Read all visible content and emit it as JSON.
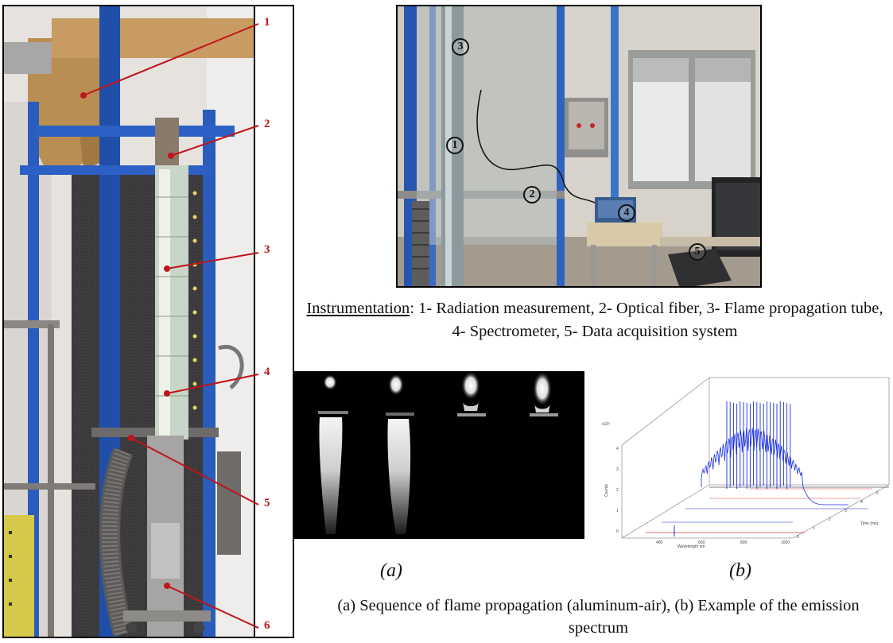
{
  "left_photo": {
    "callouts": [
      "1",
      "2",
      "3",
      "4",
      "5",
      "6"
    ]
  },
  "lab_photo": {
    "markers": [
      "3",
      "1",
      "2",
      "4",
      "5"
    ]
  },
  "instrumentation_caption": {
    "lead": "Instrumentation",
    "text": ": 1- Radiation measurement, 2- Optical fiber, 3- Flame propagation tube, 4- Spectrometer, 5- Data acquisition system"
  },
  "sub_labels": {
    "a": "(a)",
    "b": "(b)"
  },
  "figure_caption": "(a)   Sequence of flame propagation (aluminum-air), (b) Example of the emission spectrum",
  "spectrum_plot": {
    "y_axis_label": "Counts",
    "x_axis_label": "Wavelength nm",
    "y_multiplier": "x10³",
    "z_axis_label": "Time (ms)",
    "x_ticks": [
      "400",
      "600",
      "800",
      "1000"
    ],
    "y_ticks": [
      "0",
      "1",
      "2",
      "3",
      "4"
    ],
    "z_ticks": [
      "0",
      "1",
      "2",
      "3",
      "4",
      "5"
    ]
  },
  "colors": {
    "callout": "#c0151b",
    "frame_blue": "#1f4fa8",
    "spectrum_blue": "#1a2ee0",
    "spectrum_red": "#d23a3a"
  }
}
